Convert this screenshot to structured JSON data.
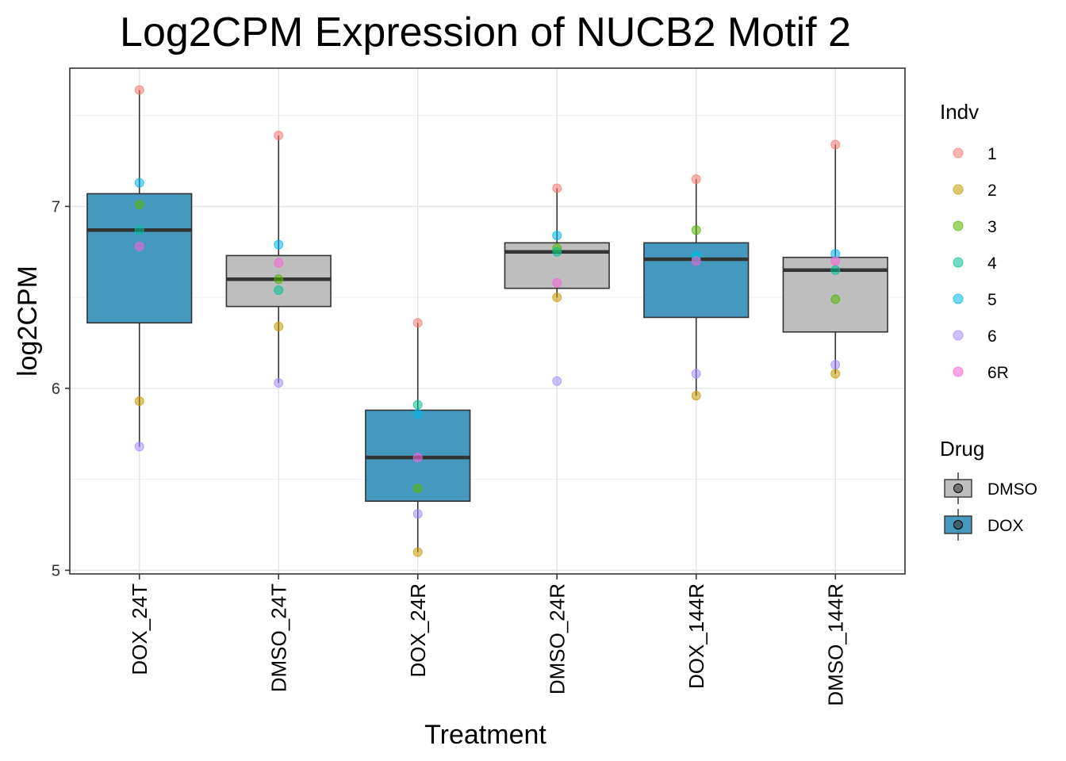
{
  "chart_data": {
    "type": "boxplot",
    "title": "Log2CPM Expression of NUCB2 Motif 2",
    "xlabel": "Treatment",
    "ylabel": "log2CPM",
    "ylim": [
      4.98,
      7.76
    ],
    "yticks": [
      5,
      6,
      7
    ],
    "grid": true,
    "categories": [
      "DOX_24T",
      "DMSO_24T",
      "DOX_24R",
      "DMSO_24R",
      "DOX_144R",
      "DMSO_144R"
    ],
    "boxes": [
      {
        "category": "DOX_24T",
        "drug": "DOX",
        "min": 5.68,
        "q1": 6.36,
        "median": 6.87,
        "q3": 7.07,
        "max": 7.64
      },
      {
        "category": "DMSO_24T",
        "drug": "DMSO",
        "min": 6.03,
        "q1": 6.45,
        "median": 6.6,
        "q3": 6.73,
        "max": 7.39
      },
      {
        "category": "DOX_24R",
        "drug": "DOX",
        "min": 5.1,
        "q1": 5.38,
        "median": 5.62,
        "q3": 5.88,
        "max": 6.36
      },
      {
        "category": "DMSO_24R",
        "drug": "DMSO",
        "min": 6.5,
        "q1": 6.55,
        "median": 6.75,
        "q3": 6.8,
        "max": 7.1
      },
      {
        "category": "DOX_144R",
        "drug": "DOX",
        "min": 5.96,
        "q1": 6.39,
        "median": 6.71,
        "q3": 6.8,
        "max": 7.15
      },
      {
        "category": "DMSO_144R",
        "drug": "DMSO",
        "min": 6.08,
        "q1": 6.31,
        "median": 6.65,
        "q3": 6.72,
        "max": 7.34
      }
    ],
    "points": [
      {
        "category": "DOX_24T",
        "indv": "1",
        "value": 7.64
      },
      {
        "category": "DOX_24T",
        "indv": "2",
        "value": 5.93
      },
      {
        "category": "DOX_24T",
        "indv": "3",
        "value": 7.01
      },
      {
        "category": "DOX_24T",
        "indv": "4",
        "value": 6.87
      },
      {
        "category": "DOX_24T",
        "indv": "5",
        "value": 7.13
      },
      {
        "category": "DOX_24T",
        "indv": "6",
        "value": 5.68
      },
      {
        "category": "DOX_24T",
        "indv": "6R",
        "value": 6.78
      },
      {
        "category": "DMSO_24T",
        "indv": "1",
        "value": 7.39
      },
      {
        "category": "DMSO_24T",
        "indv": "2",
        "value": 6.34
      },
      {
        "category": "DMSO_24T",
        "indv": "3",
        "value": 6.6
      },
      {
        "category": "DMSO_24T",
        "indv": "4",
        "value": 6.54
      },
      {
        "category": "DMSO_24T",
        "indv": "5",
        "value": 6.79
      },
      {
        "category": "DMSO_24T",
        "indv": "6",
        "value": 6.03
      },
      {
        "category": "DMSO_24T",
        "indv": "6R",
        "value": 6.69
      },
      {
        "category": "DOX_24R",
        "indv": "1",
        "value": 6.36
      },
      {
        "category": "DOX_24R",
        "indv": "2",
        "value": 5.1
      },
      {
        "category": "DOX_24R",
        "indv": "3",
        "value": 5.45
      },
      {
        "category": "DOX_24R",
        "indv": "4",
        "value": 5.91
      },
      {
        "category": "DOX_24R",
        "indv": "5",
        "value": 5.86
      },
      {
        "category": "DOX_24R",
        "indv": "6",
        "value": 5.31
      },
      {
        "category": "DOX_24R",
        "indv": "6R",
        "value": 5.62
      },
      {
        "category": "DMSO_24R",
        "indv": "1",
        "value": 7.1
      },
      {
        "category": "DMSO_24R",
        "indv": "2",
        "value": 6.5
      },
      {
        "category": "DMSO_24R",
        "indv": "3",
        "value": 6.77
      },
      {
        "category": "DMSO_24R",
        "indv": "4",
        "value": 6.75
      },
      {
        "category": "DMSO_24R",
        "indv": "5",
        "value": 6.84
      },
      {
        "category": "DMSO_24R",
        "indv": "6",
        "value": 6.04
      },
      {
        "category": "DMSO_24R",
        "indv": "6R",
        "value": 6.58
      },
      {
        "category": "DOX_144R",
        "indv": "1",
        "value": 7.15
      },
      {
        "category": "DOX_144R",
        "indv": "2",
        "value": 5.96
      },
      {
        "category": "DOX_144R",
        "indv": "3",
        "value": 6.87
      },
      {
        "category": "DOX_144R",
        "indv": "4",
        "value": 6.72
      },
      {
        "category": "DOX_144R",
        "indv": "5",
        "value": 6.73
      },
      {
        "category": "DOX_144R",
        "indv": "6",
        "value": 6.08
      },
      {
        "category": "DOX_144R",
        "indv": "6R",
        "value": 6.7
      },
      {
        "category": "DMSO_144R",
        "indv": "1",
        "value": 7.34
      },
      {
        "category": "DMSO_144R",
        "indv": "2",
        "value": 6.08
      },
      {
        "category": "DMSO_144R",
        "indv": "3",
        "value": 6.49
      },
      {
        "category": "DMSO_144R",
        "indv": "4",
        "value": 6.65
      },
      {
        "category": "DMSO_144R",
        "indv": "5",
        "value": 6.74
      },
      {
        "category": "DMSO_144R",
        "indv": "6",
        "value": 6.13
      },
      {
        "category": "DMSO_144R",
        "indv": "6R",
        "value": 6.7
      }
    ],
    "legend": {
      "placement": "right",
      "indv_title": "Indv",
      "indv": [
        {
          "label": "1",
          "color": "#F8766D"
        },
        {
          "label": "2",
          "color": "#C49A00"
        },
        {
          "label": "3",
          "color": "#53B400"
        },
        {
          "label": "4",
          "color": "#00C094"
        },
        {
          "label": "5",
          "color": "#00B6EB"
        },
        {
          "label": "6",
          "color": "#A58AFF"
        },
        {
          "label": "6R",
          "color": "#FB61D7"
        }
      ],
      "drug_title": "Drug",
      "drug": [
        {
          "label": "DMSO",
          "color": "#BEBEBE"
        },
        {
          "label": "DOX",
          "color": "#4599BF"
        }
      ]
    }
  }
}
